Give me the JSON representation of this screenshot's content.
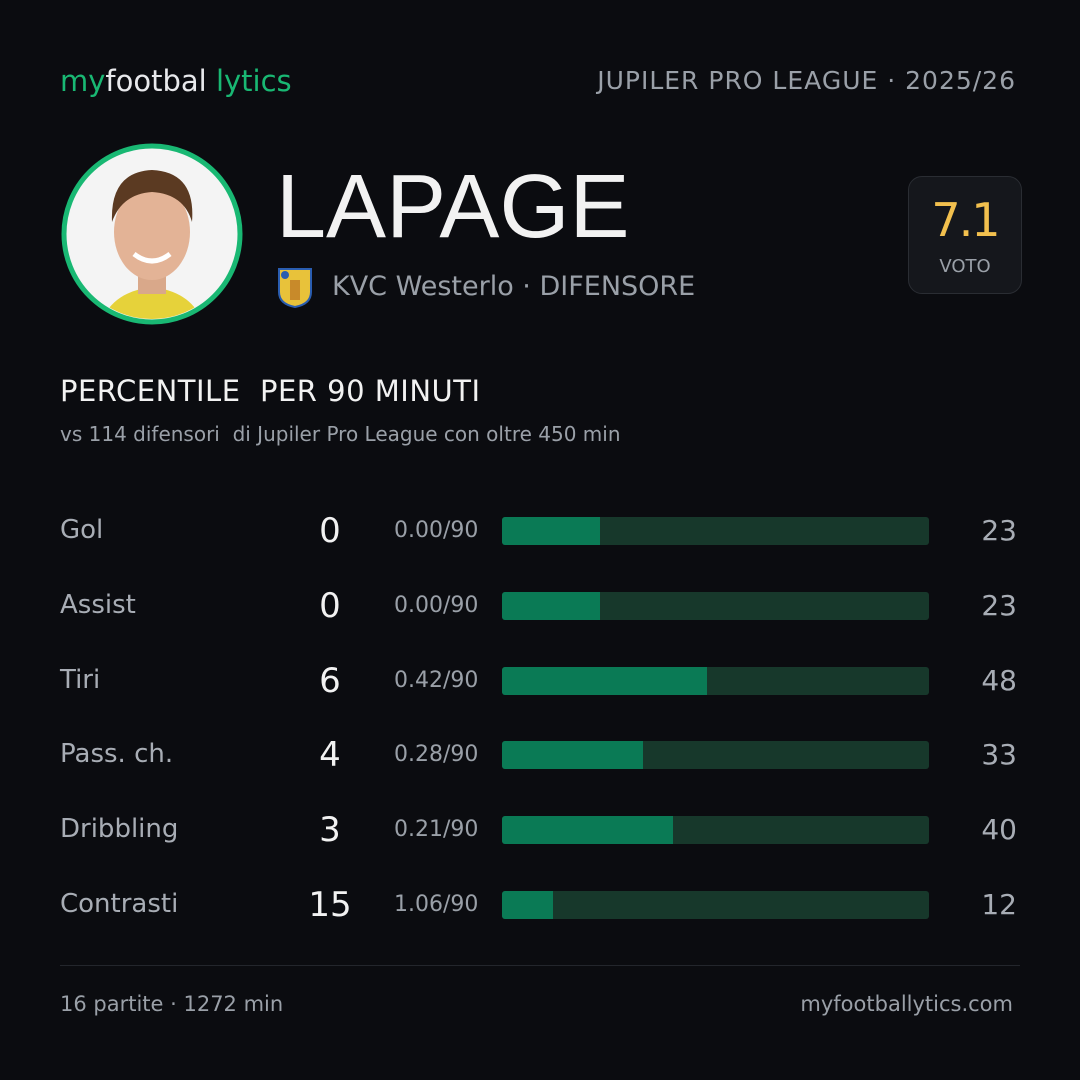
{
  "header": {
    "logo": [
      "my",
      "footbal",
      "lytics"
    ],
    "league": "JUPILER PRO LEAGUE · 2025/26"
  },
  "player": {
    "name": "LAPAGE",
    "team": "KVC Westerlo · DIFENSORE",
    "rating": "7.1",
    "rating_label": "VOTO"
  },
  "section": {
    "title": "PERCENTILE  PER 90 MINUTI",
    "subtitle": "vs 114 difensori  di Jupiler Pro League con oltre 450 min"
  },
  "rows": [
    {
      "label": "Gol",
      "total": 0,
      "per90": "0.00/90",
      "percentile": 23
    },
    {
      "label": "Assist",
      "total": 0,
      "per90": "0.00/90",
      "percentile": 23
    },
    {
      "label": "Tiri",
      "total": 6,
      "per90": "0.42/90",
      "percentile": 48
    },
    {
      "label": "Pass. ch.",
      "total": 4,
      "per90": "0.28/90",
      "percentile": 33
    },
    {
      "label": "Dribbling",
      "total": 3,
      "per90": "0.21/90",
      "percentile": 40
    },
    {
      "label": "Contrasti",
      "total": 15,
      "per90": "1.06/90",
      "percentile": 12
    }
  ],
  "footer": {
    "left": "16 partite · 1272 min",
    "right": "myfootballytics.com"
  }
}
